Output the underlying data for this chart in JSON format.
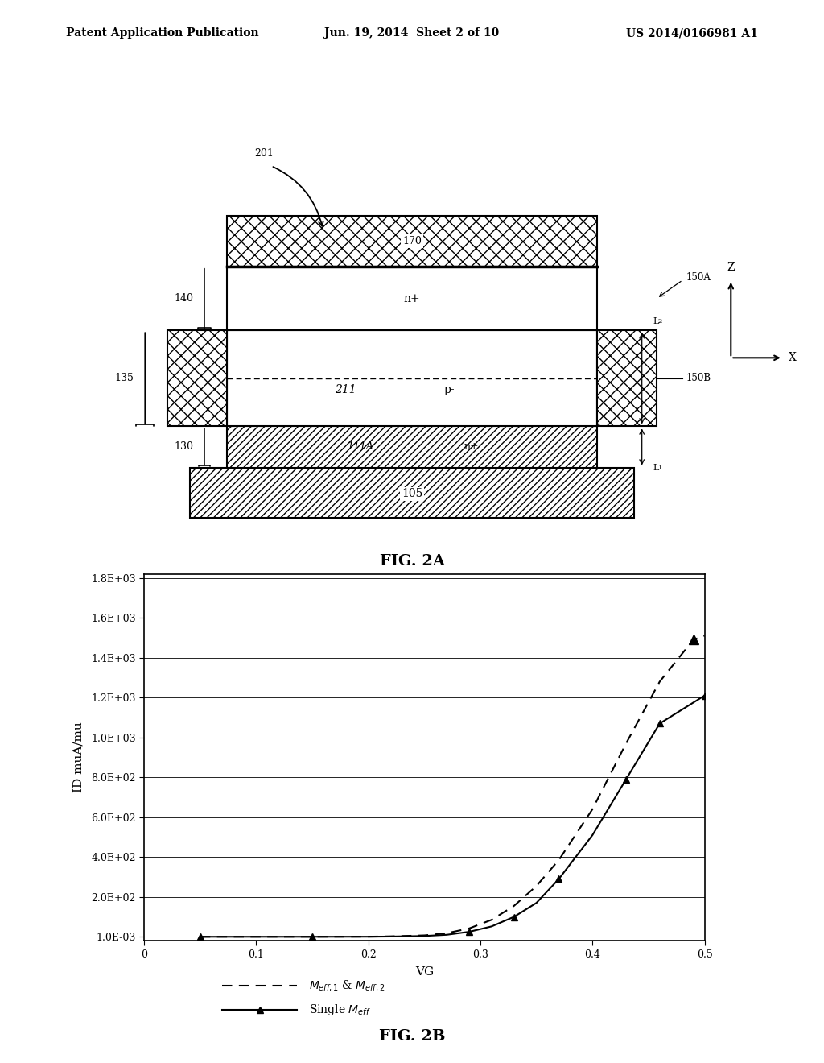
{
  "header_left": "Patent Application Publication",
  "header_center": "Jun. 19, 2014  Sheet 2 of 10",
  "header_right": "US 2014/0166981 A1",
  "fig2a_label": "FIG. 2A",
  "fig2b_label": "FIG. 2B",
  "vg_xlabel": "VG",
  "id_ylabel": "ID muA/mu",
  "yticks": [
    "1.0E-03",
    "2.0E+02",
    "4.0E+02",
    "6.0E+02",
    "8.0E+02",
    "1.0E+03",
    "1.2E+03",
    "1.4E+03",
    "1.6E+03",
    "1.8E+03"
  ],
  "ytick_vals": [
    0.001,
    200,
    400,
    600,
    800,
    1000,
    1200,
    1400,
    1600,
    1800
  ],
  "xticks": [
    0,
    0.1,
    0.2,
    0.3,
    0.4,
    0.5
  ],
  "dashed_x": [
    0.05,
    0.15,
    0.2,
    0.22,
    0.25,
    0.27,
    0.29,
    0.31,
    0.33,
    0.35,
    0.37,
    0.4,
    0.43,
    0.46,
    0.49,
    0.5
  ],
  "dashed_y": [
    0.001,
    0.001,
    0.5,
    2.0,
    7,
    18,
    42,
    85,
    155,
    255,
    385,
    640,
    970,
    1280,
    1490,
    1510
  ],
  "solid_x": [
    0.05,
    0.15,
    0.2,
    0.22,
    0.25,
    0.27,
    0.29,
    0.31,
    0.33,
    0.35,
    0.37,
    0.4,
    0.43,
    0.46,
    0.5
  ],
  "solid_y": [
    0.001,
    0.001,
    0.3,
    1.2,
    4,
    10,
    25,
    52,
    100,
    170,
    290,
    510,
    790,
    1070,
    1210
  ],
  "bg_color": "#ffffff",
  "line_color": "#000000",
  "label_201": "201",
  "label_140": "140",
  "label_135": "135",
  "label_130": "130",
  "label_170": "170",
  "label_111A": "111A",
  "label_211": "211",
  "label_n_top": "n+",
  "label_p": "p-",
  "label_n_bot": "n+",
  "label_105": "105",
  "label_150A": "150A",
  "label_150B": "150B",
  "label_L1": "L",
  "label_L2": "L",
  "label_Z": "Z",
  "label_X": "X"
}
